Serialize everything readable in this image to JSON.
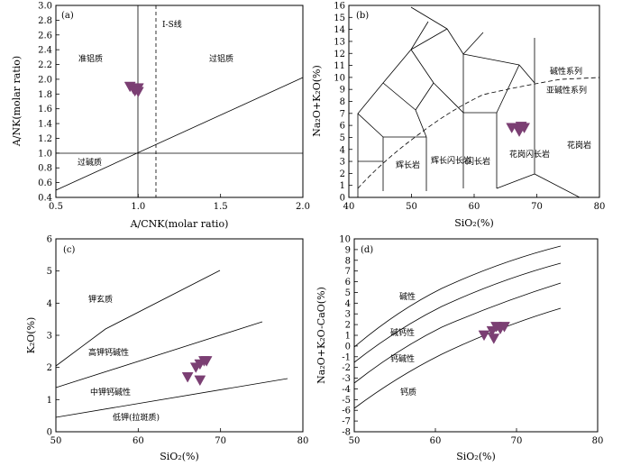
{
  "colors": {
    "marker": "#7b3f73",
    "line": "#000000"
  },
  "chart_data": [
    {
      "id": "a",
      "type": "scatter",
      "panel_label": "(a)",
      "xlabel": "A/CNK(molar ratio)",
      "ylabel": "A/NK(molar ratio)",
      "xlim": [
        0.5,
        2.0
      ],
      "ylim": [
        0.4,
        3.0
      ],
      "xticks": [
        "0.5",
        "1.0",
        "1.5",
        "2.0"
      ],
      "yticks": [
        "0.4",
        "0.6",
        "0.8",
        "1.0",
        "1.2",
        "1.4",
        "1.6",
        "1.8",
        "2.0",
        "2.2",
        "2.4",
        "2.6",
        "2.8",
        "3.0"
      ],
      "points": [
        {
          "x": 0.95,
          "y": 1.9
        },
        {
          "x": 0.97,
          "y": 1.87
        },
        {
          "x": 1.0,
          "y": 1.88
        },
        {
          "x": 0.98,
          "y": 1.84
        },
        {
          "x": 1.0,
          "y": 1.83
        }
      ],
      "annotations": [
        "I-S线",
        "准铝质",
        "过铝质",
        "过碱质"
      ]
    },
    {
      "id": "b",
      "type": "scatter",
      "panel_label": "(b)",
      "xlabel": "SiO₂(%)",
      "ylabel": "Na₂O+K₂O(%)",
      "xlim": [
        40,
        80
      ],
      "ylim": [
        0,
        16
      ],
      "xticks": [
        "40",
        "50",
        "60",
        "70",
        "80"
      ],
      "yticks": [
        "0",
        "1",
        "2",
        "3",
        "4",
        "5",
        "6",
        "7",
        "8",
        "9",
        "10",
        "11",
        "12",
        "13",
        "14",
        "15",
        "16"
      ],
      "points": [
        {
          "x": 66.0,
          "y": 5.8
        },
        {
          "x": 67.0,
          "y": 5.7
        },
        {
          "x": 67.5,
          "y": 5.9
        },
        {
          "x": 68.0,
          "y": 5.8
        },
        {
          "x": 67.2,
          "y": 5.5
        }
      ],
      "annotations": [
        "碱性系列",
        "亚碱性系列",
        "辉长岩",
        "辉长闪长岩",
        "闪长岩",
        "花岗闪长岩",
        "花岗岩"
      ]
    },
    {
      "id": "c",
      "type": "scatter",
      "panel_label": "(c)",
      "xlabel": "SiO₂(%)",
      "ylabel": "K₂O(%)",
      "xlim": [
        50,
        80
      ],
      "ylim": [
        0,
        6
      ],
      "xticks": [
        "50",
        "60",
        "70",
        "80"
      ],
      "yticks": [
        "0",
        "1",
        "2",
        "3",
        "4",
        "5",
        "6"
      ],
      "points": [
        {
          "x": 66.0,
          "y": 1.7
        },
        {
          "x": 67.0,
          "y": 2.0
        },
        {
          "x": 67.5,
          "y": 2.1
        },
        {
          "x": 68.0,
          "y": 2.2
        },
        {
          "x": 67.5,
          "y": 1.6
        },
        {
          "x": 68.3,
          "y": 2.2
        }
      ],
      "annotations": [
        "钾玄质",
        "高钾钙碱性",
        "中钾钙碱性",
        "低钾(拉斑质)"
      ]
    },
    {
      "id": "d",
      "type": "scatter",
      "panel_label": "(d)",
      "xlabel": "SiO₂(%)",
      "ylabel": "Na₂O+K₂O-CaO(%)",
      "xlim": [
        50,
        80
      ],
      "ylim": [
        -8,
        10
      ],
      "xticks": [
        "50",
        "60",
        "70",
        "80"
      ],
      "yticks": [
        "-8",
        "-7",
        "-6",
        "-5",
        "-4",
        "-3",
        "-2",
        "-1",
        "0",
        "1",
        "2",
        "3",
        "4",
        "5",
        "6",
        "7",
        "8",
        "9",
        "10"
      ],
      "points": [
        {
          "x": 66.0,
          "y": 1.0
        },
        {
          "x": 67.0,
          "y": 1.4
        },
        {
          "x": 67.5,
          "y": 1.8
        },
        {
          "x": 68.0,
          "y": 1.6
        },
        {
          "x": 67.2,
          "y": 0.7
        },
        {
          "x": 68.5,
          "y": 1.8
        }
      ],
      "annotations": [
        "碱性",
        "碱钙性",
        "钙碱性",
        "钙质"
      ]
    }
  ]
}
